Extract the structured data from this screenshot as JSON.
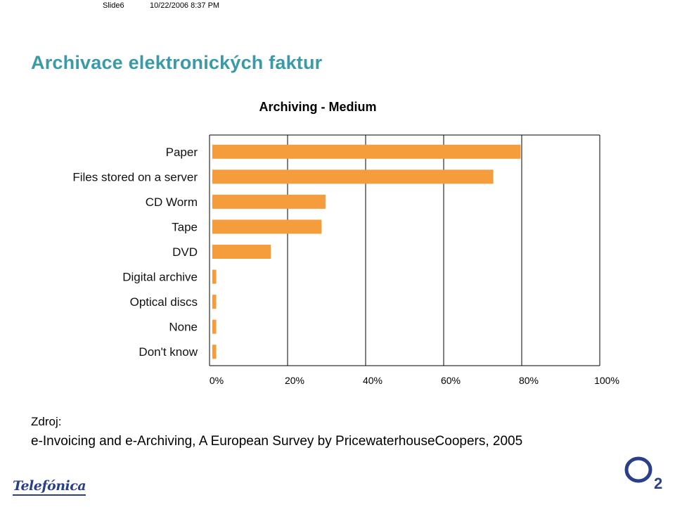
{
  "header": {
    "slide": "Slide6",
    "datetime": "10/22/2006 8:37 PM"
  },
  "page_title": "Archivace elektronických faktur",
  "source": {
    "label": "Zdroj:",
    "text": "e-Invoicing and e-Archiving, A European Survey by PricewaterhouseCoopers, 2005"
  },
  "logos": {
    "left": "Telefónica",
    "right": "O2"
  },
  "colors": {
    "title": "#3a9aa6",
    "bar": "#f59c3c",
    "axis": "#000000"
  },
  "chart_data": {
    "type": "bar",
    "orientation": "horizontal",
    "title": "Archiving - Medium",
    "categories": [
      "Paper",
      "Files stored on a server",
      "CD Worm",
      "Tape",
      "DVD",
      "Digital archive",
      "Optical discs",
      "None",
      "Don't know"
    ],
    "values": [
      79,
      72,
      29,
      28,
      15,
      1,
      1,
      1,
      1
    ],
    "xticks": [
      "0%",
      "20%",
      "40%",
      "60%",
      "80%",
      "100%"
    ],
    "xlim": [
      0,
      100
    ],
    "grid": true,
    "legend": "none"
  }
}
